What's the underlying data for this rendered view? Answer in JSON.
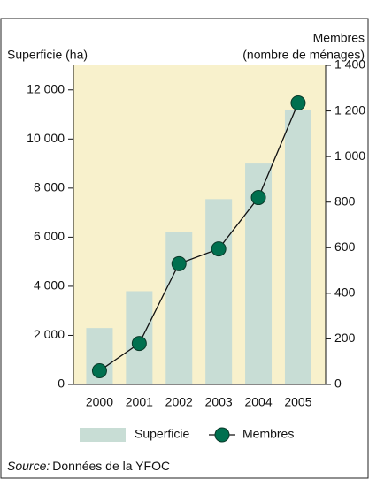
{
  "chart_data": {
    "type": "bar-line",
    "ylabel": "Superficie (ha)",
    "y2label": [
      "Membres",
      "(nombre de ménages)"
    ],
    "categories": [
      "2000",
      "2001",
      "2002",
      "2003",
      "2004",
      "2005"
    ],
    "series": [
      {
        "name": "Superficie",
        "type": "bar",
        "color": "#c8ddd5",
        "values": [
          2300,
          3800,
          6200,
          7550,
          9000,
          11200
        ]
      },
      {
        "name": "Membres",
        "type": "line",
        "axis": "y2",
        "color": "#00704f",
        "values": [
          60,
          180,
          530,
          595,
          820,
          1235
        ]
      }
    ],
    "ylim": [
      0,
      13000
    ],
    "yticks": [
      0,
      {
        "value": 2000,
        "label": "2 000"
      },
      {
        "value": 4000,
        "label": "4 000"
      },
      {
        "value": 6000,
        "label": "6 000"
      },
      {
        "value": 8000,
        "label": "8 000"
      },
      {
        "value": 10000,
        "label": "10 000"
      },
      {
        "value": 12000,
        "label": "12 000"
      }
    ],
    "y2lim": [
      0,
      1400
    ],
    "y2ticks": [
      0,
      200,
      400,
      600,
      800,
      {
        "value": 1000,
        "label": "1 000"
      },
      {
        "value": 1200,
        "label": "1 200"
      },
      {
        "value": 1400,
        "label": "1 400"
      }
    ],
    "background": "#f8f1cc",
    "source_label": "Source:",
    "source": "Données de la YFOC"
  }
}
